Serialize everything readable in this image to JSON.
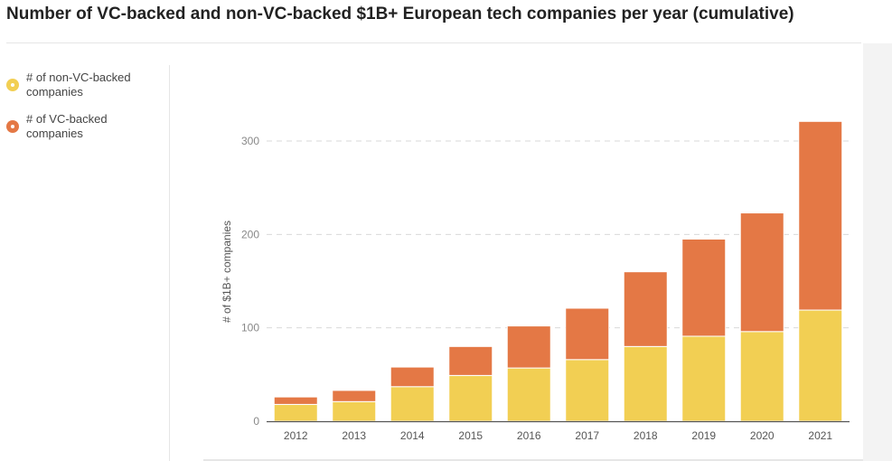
{
  "title": "Number of VC-backed and non-VC-backed $1B+ European tech companies per year (cumulative)",
  "legend": [
    {
      "label": "# of non-VC-backed companies",
      "color": "#f2cf53"
    },
    {
      "label": "# of VC-backed companies",
      "color": "#e47845"
    }
  ],
  "chart_data": {
    "type": "bar",
    "stacked": true,
    "categories": [
      "2012",
      "2013",
      "2014",
      "2015",
      "2016",
      "2017",
      "2018",
      "2019",
      "2020",
      "2021"
    ],
    "series": [
      {
        "name": "# of non-VC-backed companies",
        "color": "#f2cf53",
        "values": [
          18,
          21,
          37,
          49,
          57,
          66,
          80,
          91,
          96,
          119
        ]
      },
      {
        "name": "# of VC-backed companies",
        "color": "#e47845",
        "values": [
          8,
          12,
          21,
          31,
          45,
          55,
          80,
          104,
          127,
          202
        ]
      }
    ],
    "ylabel": "# of $1B+ companies",
    "xlabel": "",
    "yticks": [
      0,
      100,
      200,
      300
    ],
    "ylim": [
      0,
      330
    ],
    "grid": true,
    "legend_position": "left"
  }
}
